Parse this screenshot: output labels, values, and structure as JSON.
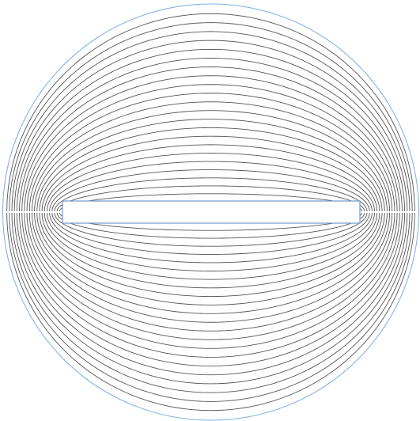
{
  "diagram": {
    "kind": "equipotential-contour-plot",
    "colors": {
      "background": "#ffffff",
      "outer_boundary": "#7aaee6",
      "plate_outline": "#6f99cf",
      "contour": "#555555"
    },
    "elements": [
      {
        "name": "outer-circular-boundary",
        "shape": "circle"
      },
      {
        "name": "central-rectangular-plate",
        "shape": "rectangle"
      },
      {
        "name": "equipotential-contours",
        "shape": "nested-ellipses",
        "count_per_side": 22
      }
    ]
  }
}
